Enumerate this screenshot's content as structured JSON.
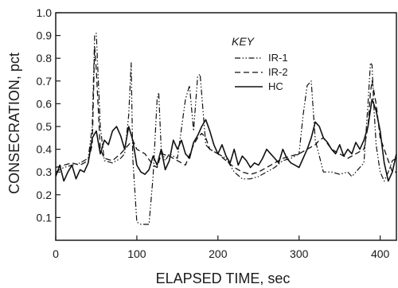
{
  "chart_data": {
    "type": "line",
    "xlabel": "ELAPSED TIME, sec",
    "ylabel": "CONSECRATION, pct",
    "xlim": [
      0,
      420
    ],
    "ylim": [
      0,
      1.0
    ],
    "x_ticks": [
      "0",
      "100",
      "200",
      "300",
      "400"
    ],
    "y_ticks": [
      "0.1",
      "0.2",
      "0.3",
      "0.4",
      "0.5",
      "0.6",
      "0.7",
      "0.8",
      "0.9",
      "1.0"
    ],
    "legend_title": "KEY",
    "legend_position": "top-right",
    "series": [
      {
        "name": "IR-1",
        "style": "dash-dot-dot",
        "x": [
          0,
          10,
          20,
          30,
          40,
          45,
          48,
          50,
          55,
          60,
          70,
          80,
          85,
          90,
          93,
          95,
          100,
          105,
          110,
          115,
          120,
          125,
          127,
          130,
          135,
          140,
          150,
          160,
          165,
          170,
          175,
          178,
          182,
          185,
          190,
          200,
          210,
          220,
          230,
          240,
          250,
          260,
          270,
          280,
          290,
          300,
          305,
          310,
          315,
          320,
          330,
          340,
          350,
          360,
          365,
          370,
          380,
          385,
          388,
          390,
          392,
          395,
          400,
          405,
          410,
          415,
          420
        ],
        "y": [
          0.3,
          0.32,
          0.33,
          0.34,
          0.36,
          0.5,
          0.9,
          0.91,
          0.5,
          0.35,
          0.34,
          0.36,
          0.38,
          0.55,
          0.78,
          0.36,
          0.08,
          0.07,
          0.07,
          0.07,
          0.28,
          0.62,
          0.65,
          0.4,
          0.35,
          0.38,
          0.36,
          0.62,
          0.68,
          0.48,
          0.72,
          0.73,
          0.55,
          0.42,
          0.4,
          0.38,
          0.36,
          0.3,
          0.27,
          0.27,
          0.28,
          0.3,
          0.32,
          0.35,
          0.36,
          0.38,
          0.55,
          0.68,
          0.7,
          0.44,
          0.3,
          0.3,
          0.29,
          0.3,
          0.28,
          0.3,
          0.34,
          0.6,
          0.78,
          0.77,
          0.6,
          0.42,
          0.3,
          0.26,
          0.3,
          0.35,
          0.36
        ]
      },
      {
        "name": "IR-2",
        "style": "dashed",
        "x": [
          0,
          10,
          20,
          30,
          40,
          45,
          48,
          50,
          55,
          60,
          70,
          80,
          90,
          95,
          100,
          110,
          120,
          125,
          130,
          140,
          150,
          160,
          170,
          175,
          180,
          185,
          190,
          200,
          210,
          220,
          230,
          240,
          250,
          260,
          270,
          280,
          290,
          300,
          310,
          320,
          325,
          330,
          340,
          350,
          360,
          370,
          380,
          385,
          388,
          390,
          395,
          400,
          410,
          415,
          420
        ],
        "y": [
          0.32,
          0.33,
          0.34,
          0.33,
          0.35,
          0.42,
          0.85,
          0.75,
          0.4,
          0.36,
          0.35,
          0.38,
          0.42,
          0.44,
          0.4,
          0.38,
          0.33,
          0.32,
          0.38,
          0.37,
          0.35,
          0.33,
          0.42,
          0.45,
          0.47,
          0.45,
          0.4,
          0.38,
          0.35,
          0.32,
          0.3,
          0.29,
          0.3,
          0.32,
          0.34,
          0.36,
          0.37,
          0.38,
          0.4,
          0.42,
          0.44,
          0.45,
          0.4,
          0.38,
          0.36,
          0.38,
          0.4,
          0.5,
          0.65,
          0.7,
          0.6,
          0.45,
          0.35,
          0.3,
          0.3
        ]
      },
      {
        "name": "HC",
        "style": "solid",
        "x": [
          0,
          5,
          10,
          15,
          20,
          25,
          30,
          35,
          40,
          45,
          50,
          55,
          60,
          65,
          70,
          75,
          80,
          85,
          90,
          95,
          100,
          105,
          110,
          115,
          120,
          125,
          130,
          135,
          140,
          145,
          150,
          155,
          160,
          165,
          170,
          175,
          180,
          185,
          190,
          195,
          200,
          205,
          210,
          215,
          220,
          225,
          230,
          235,
          240,
          245,
          250,
          255,
          260,
          265,
          270,
          275,
          280,
          285,
          290,
          295,
          300,
          305,
          310,
          315,
          320,
          325,
          330,
          335,
          340,
          345,
          350,
          355,
          360,
          365,
          370,
          375,
          380,
          385,
          390,
          395,
          400,
          405,
          410,
          415,
          420
        ],
        "y": [
          0.28,
          0.33,
          0.26,
          0.3,
          0.33,
          0.27,
          0.31,
          0.3,
          0.34,
          0.45,
          0.48,
          0.38,
          0.44,
          0.42,
          0.48,
          0.5,
          0.46,
          0.4,
          0.5,
          0.44,
          0.33,
          0.3,
          0.29,
          0.31,
          0.37,
          0.33,
          0.4,
          0.31,
          0.35,
          0.44,
          0.4,
          0.44,
          0.38,
          0.36,
          0.43,
          0.46,
          0.5,
          0.53,
          0.48,
          0.42,
          0.38,
          0.42,
          0.37,
          0.34,
          0.4,
          0.33,
          0.37,
          0.35,
          0.32,
          0.34,
          0.33,
          0.36,
          0.4,
          0.38,
          0.36,
          0.34,
          0.4,
          0.36,
          0.34,
          0.33,
          0.32,
          0.36,
          0.4,
          0.45,
          0.52,
          0.5,
          0.45,
          0.43,
          0.4,
          0.38,
          0.42,
          0.37,
          0.4,
          0.38,
          0.43,
          0.4,
          0.44,
          0.5,
          0.62,
          0.57,
          0.48,
          0.34,
          0.26,
          0.3,
          0.38
        ]
      }
    ]
  }
}
